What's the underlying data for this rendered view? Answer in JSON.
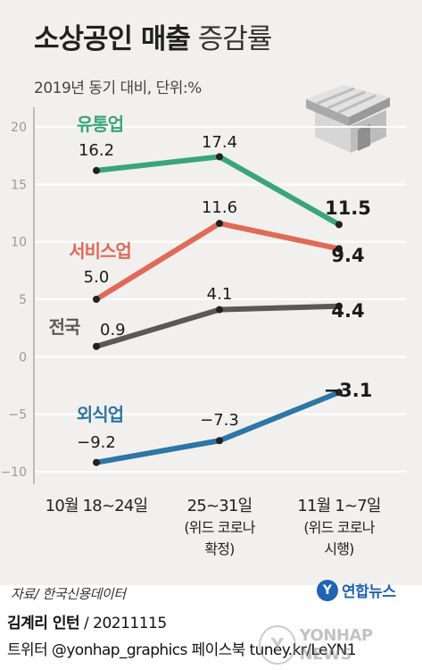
{
  "title": {
    "bold": "소상공인 매출",
    "light": "증감률"
  },
  "subtitle": "2019년 동기 대비, 단위:%",
  "chart_data": {
    "type": "line",
    "categories": [
      "10월 18~24일",
      "25~31일\n(위드 코로나\n확정)",
      "11월 1~7일\n(위드 코로나\n시행)"
    ],
    "ylim": [
      -10,
      20
    ],
    "yticks": [
      "20",
      "15",
      "10",
      "5",
      "0",
      "−5",
      "−10"
    ],
    "ytick_values": [
      20,
      15,
      10,
      5,
      0,
      -5,
      -10
    ],
    "series": [
      {
        "name": "유통업",
        "color": "#3aa57c",
        "values": [
          16.2,
          17.4,
          11.5
        ],
        "labels": [
          "16.2",
          "17.4",
          "11.5"
        ]
      },
      {
        "name": "서비스업",
        "color": "#e06a58",
        "values": [
          5.0,
          11.6,
          9.4
        ],
        "labels": [
          "5.0",
          "11.6",
          "9.4"
        ]
      },
      {
        "name": "전국",
        "color": "#595959",
        "values": [
          0.9,
          4.1,
          4.4
        ],
        "labels": [
          "0.9",
          "4.1",
          "4.4"
        ]
      },
      {
        "name": "외식업",
        "color": "#2d76a6",
        "values": [
          -9.2,
          -7.3,
          -3.1
        ],
        "labels": [
          "−9.2",
          "−7.3",
          "−3.1"
        ]
      }
    ]
  },
  "store_icon": "storefront-icon",
  "source": "자료/ 한국신용데이터",
  "logo": {
    "mark": "Y",
    "text": "연합뉴스"
  },
  "credit": {
    "author": "김계리 인턴",
    "rest": " / 20211115"
  },
  "social": "트위터 @yonhap_graphics  페이스북 tuney.kr/LeYN1",
  "watermark": {
    "mark": "Y",
    "text": "YONHAP NEWS"
  }
}
